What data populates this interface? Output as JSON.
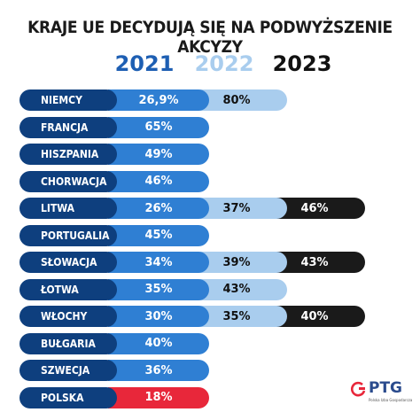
{
  "chart_data": {
    "type": "table",
    "title": "KRAJE UE DECYDUJĄ SIĘ NA PODWYŻSZENIE AKCYZY",
    "columns": [
      "2021",
      "2022",
      "2023"
    ],
    "rows": [
      {
        "country": "NIEMCY",
        "2021": "26,9%",
        "2022": "80%",
        "2023": null
      },
      {
        "country": "FRANCJA",
        "2021": "65%",
        "2022": null,
        "2023": null
      },
      {
        "country": "HISZPANIA",
        "2021": "49%",
        "2022": null,
        "2023": null
      },
      {
        "country": "CHORWACJA",
        "2021": "46%",
        "2022": null,
        "2023": null
      },
      {
        "country": "LITWA",
        "2021": "26%",
        "2022": "37%",
        "2023": "46%"
      },
      {
        "country": "PORTUGALIA",
        "2021": "45%",
        "2022": null,
        "2023": null
      },
      {
        "country": "SŁOWACJA",
        "2021": "34%",
        "2022": "39%",
        "2023": "43%"
      },
      {
        "country": "ŁOTWA",
        "2021": "35%",
        "2022": "43%",
        "2023": null
      },
      {
        "country": "WŁOCHY",
        "2021": "30%",
        "2022": "35%",
        "2023": "40%"
      },
      {
        "country": "BUŁGARIA",
        "2021": "40%",
        "2022": null,
        "2023": null
      },
      {
        "country": "SZWECJA",
        "2021": "36%",
        "2022": null,
        "2023": null
      },
      {
        "country": "POLSKA",
        "2021": "18%",
        "2022": null,
        "2023": null,
        "highlight": true
      }
    ],
    "colors": {
      "country_label": "#0e3f7e",
      "year_2021": "#2f7fd3",
      "year_2022": "#a9cdee",
      "year_2023": "#1a1a1a",
      "highlight": "#e8273a"
    }
  },
  "logo": {
    "name": "PTG",
    "subtitle": "Polska Izba Gospodarcza",
    "icon": "ptg-logo-icon"
  }
}
